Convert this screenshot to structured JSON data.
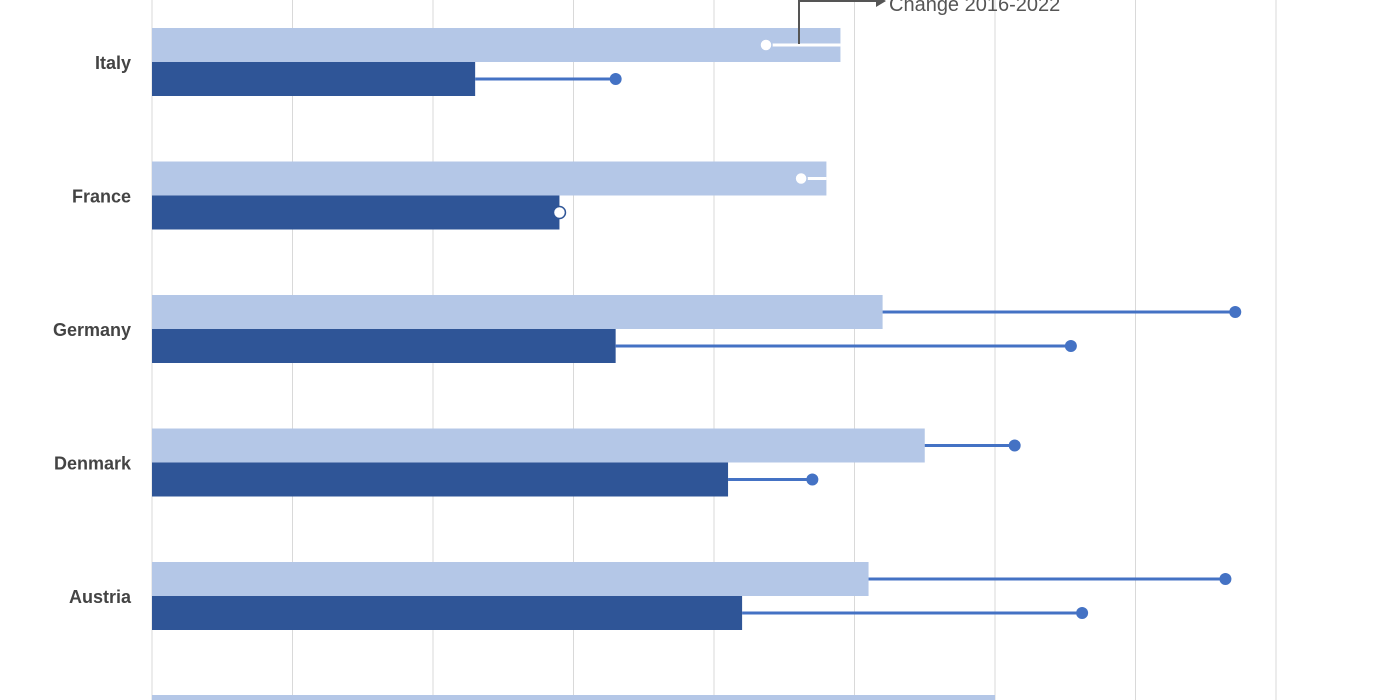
{
  "chart_data": {
    "type": "bar",
    "orientation": "horizontal",
    "categories": [
      "Italy",
      "France",
      "Germany",
      "Denmark",
      "Austria"
    ],
    "series": [
      {
        "values": [
          49,
          48,
          52,
          55,
          51
        ],
        "change_endpoints": [
          43.7,
          46.2,
          77.1,
          61.4,
          76.4
        ],
        "color": "#b4c7e7"
      },
      {
        "values": [
          23,
          29,
          33,
          41,
          42
        ],
        "change_endpoints": [
          33,
          29,
          65.4,
          47,
          66.2
        ],
        "color": "#2f5597"
      }
    ],
    "annotation": "Change 2016-2022",
    "change_line_color": "#4472c4",
    "xlim": [
      0,
      80
    ],
    "grid": true
  }
}
